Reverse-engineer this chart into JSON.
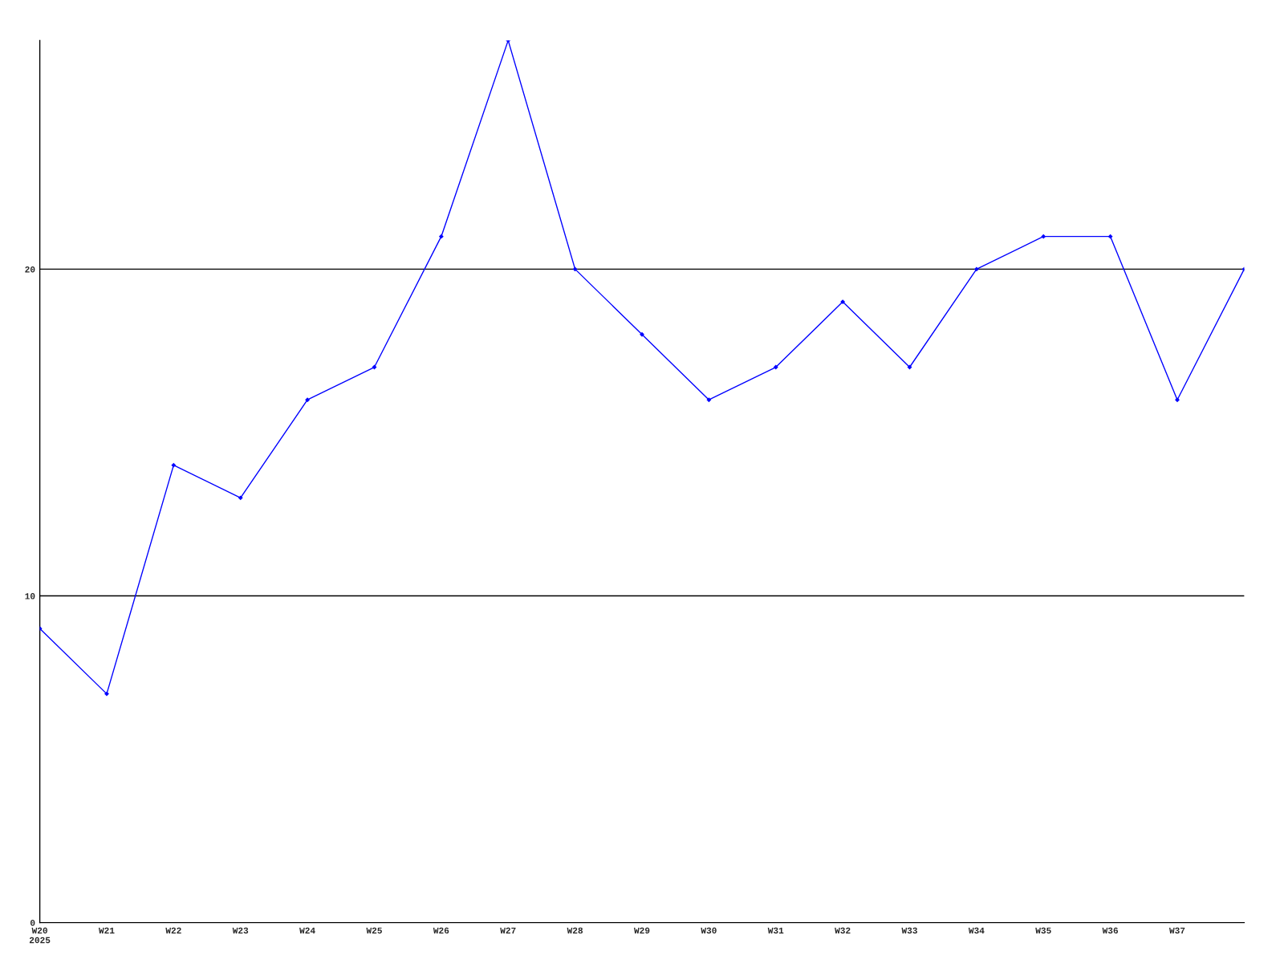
{
  "chart_data": {
    "type": "line",
    "categories": [
      "W20\n2025",
      "W21",
      "W22",
      "W23",
      "W24",
      "W25",
      "W26",
      "W27",
      "W28",
      "W29",
      "W30",
      "W31",
      "W32",
      "W33",
      "W34",
      "W35",
      "W36",
      "W37",
      null
    ],
    "series": [
      {
        "color": "#0000ff",
        "values": [
          9,
          7,
          14,
          13,
          16,
          17,
          21,
          27,
          20,
          18,
          16,
          17,
          19,
          17,
          20,
          21,
          21,
          16,
          20
        ]
      }
    ],
    "ylim": [
      0,
      27
    ],
    "yticks": [
      0,
      10,
      20
    ],
    "grid": "y",
    "marker": "diamond",
    "line_style": "solid"
  }
}
